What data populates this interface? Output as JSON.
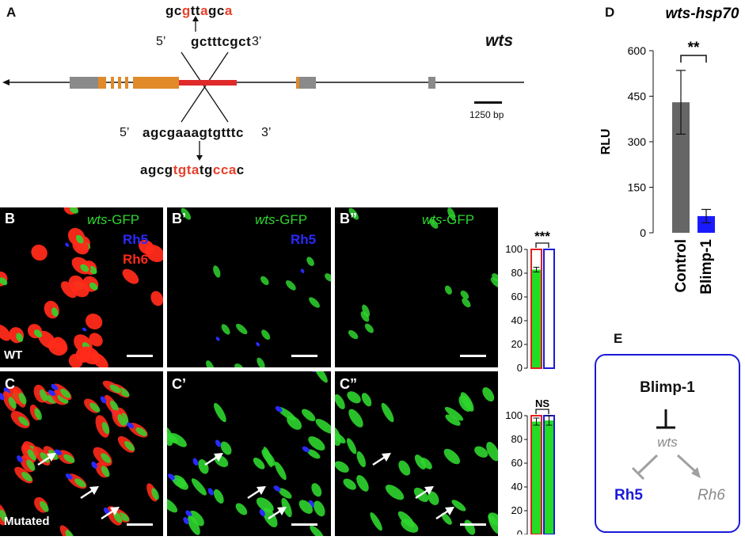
{
  "panel_a": {
    "letter": "A",
    "gene": "wts",
    "top_mut": [
      {
        "t": "gc",
        "m": false
      },
      {
        "t": "g",
        "m": true
      },
      {
        "t": "tt",
        "m": false
      },
      {
        "t": "a",
        "m": true
      },
      {
        "t": "gc",
        "m": false
      },
      {
        "t": "a",
        "m": true
      }
    ],
    "top_prime5": "5’",
    "top_seq": "gctttcgct",
    "top_prime3": "3’",
    "bottom_prime5": "5’",
    "bottom_seq": "agcgaaagtgtttc",
    "bottom_prime3": "3’",
    "bottom_mut": [
      {
        "t": "agcg",
        "m": false
      },
      {
        "t": "tgta",
        "m": true
      },
      {
        "t": "tg",
        "m": false
      },
      {
        "t": "cca",
        "m": true
      },
      {
        "t": "c",
        "m": false
      }
    ],
    "scale_label": "1250 bp"
  },
  "panels_bc": {
    "B": {
      "letter": "B",
      "gfp_italic": "wts",
      "gfp_rest": "-GFP",
      "rh5": "Rh5",
      "rh6": "Rh6",
      "condition": "WT"
    },
    "B1": {
      "letter": "B’",
      "gfp_italic": "wts",
      "gfp_rest": "-GFP",
      "rh5": "Rh5"
    },
    "B2": {
      "letter": "B”",
      "gfp_italic": "wts",
      "gfp_rest": "-GFP"
    },
    "C": {
      "letter": "C",
      "condition": "Mutated"
    },
    "C1": {
      "letter": "C’"
    },
    "C2": {
      "letter": "C”"
    }
  },
  "colors": {
    "gfp": "#2fd52f",
    "rh5": "#2a2aff",
    "rh6": "#ff2a1a",
    "bar_grey": "#666666",
    "bar_blue": "#1a1aff"
  },
  "chart_data": [
    {
      "type": "bar",
      "id": "B-quant",
      "significance": "***",
      "ylim": [
        0,
        100
      ],
      "yticks": [
        0,
        20,
        40,
        60,
        80,
        100
      ],
      "bars": [
        {
          "outline": "red",
          "green_value": 83,
          "error": 2
        },
        {
          "outline": "blue",
          "green_value": 0,
          "error": 0
        }
      ]
    },
    {
      "type": "bar",
      "id": "C-quant",
      "significance": "NS",
      "ylim": [
        0,
        100
      ],
      "yticks": [
        0,
        20,
        40,
        60,
        80,
        100
      ],
      "bars": [
        {
          "outline": "red",
          "green_value": 95,
          "error": 3
        },
        {
          "outline": "blue",
          "green_value": 96,
          "error": 4
        }
      ]
    },
    {
      "type": "bar",
      "id": "D-luciferase",
      "title": "wts-hsp70",
      "ylabel": "RLU",
      "significance": "**",
      "ylim": [
        0,
        600
      ],
      "yticks": [
        0,
        150,
        300,
        450,
        600
      ],
      "categories": [
        "Control",
        "Blimp-1"
      ],
      "values": [
        430,
        55
      ],
      "errors": [
        105,
        22
      ]
    }
  ],
  "panel_d": {
    "letter": "D"
  },
  "panel_e": {
    "letter": "E",
    "top": "Blimp-1",
    "mid": "wts",
    "left": "Rh5",
    "right": "Rh6"
  }
}
